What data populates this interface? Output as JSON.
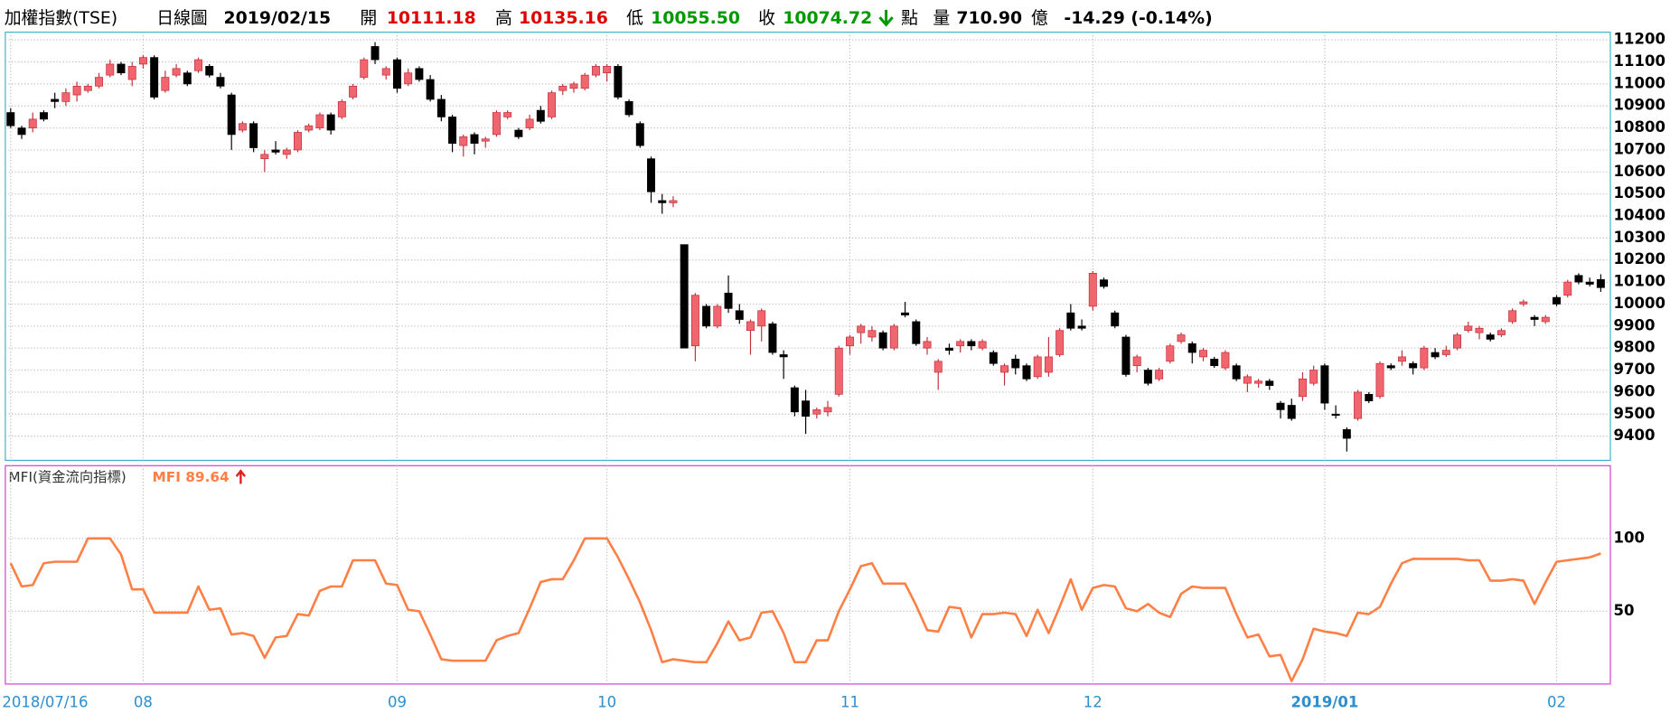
{
  "header": {
    "title": "加權指數(TSE)",
    "period": "日線圖",
    "date": "2019/02/15",
    "open_label": "開",
    "open": "10111.18",
    "high_label": "高",
    "high": "10135.16",
    "low_label": "低",
    "low": "10055.50",
    "close_label": "收",
    "close": "10074.72",
    "unit": "點",
    "volume_label": "量",
    "volume": "710.90",
    "volume_unit": "億",
    "change": "-14.29 (-0.14%)"
  },
  "chart_data": [
    {
      "type": "candlestick",
      "categories": [
        "2018/07/16",
        null,
        null,
        null,
        null,
        null,
        null,
        null,
        null,
        null,
        null,
        null,
        "08",
        null,
        null,
        null,
        null,
        null,
        null,
        null,
        null,
        null,
        null,
        null,
        null,
        null,
        null,
        null,
        null,
        null,
        null,
        null,
        null,
        null,
        null,
        "09",
        null,
        null,
        null,
        null,
        null,
        null,
        null,
        null,
        null,
        null,
        null,
        null,
        null,
        null,
        null,
        null,
        null,
        null,
        "10",
        null,
        null,
        null,
        null,
        null,
        null,
        null,
        null,
        null,
        null,
        null,
        null,
        null,
        null,
        null,
        null,
        null,
        null,
        null,
        null,
        null,
        "11",
        null,
        null,
        null,
        null,
        null,
        null,
        null,
        null,
        null,
        null,
        null,
        null,
        null,
        null,
        null,
        null,
        null,
        null,
        null,
        null,
        null,
        "12",
        null,
        null,
        null,
        null,
        null,
        null,
        null,
        null,
        null,
        null,
        null,
        null,
        null,
        null,
        null,
        null,
        null,
        null,
        null,
        null,
        "2019/01",
        null,
        null,
        null,
        null,
        null,
        null,
        null,
        null,
        null,
        null,
        null,
        null,
        null,
        null,
        null,
        null,
        null,
        null,
        null,
        null,
        "02",
        null,
        null,
        null,
        null
      ],
      "open": [
        10870,
        10800,
        10800,
        10870,
        10930,
        10920,
        10950,
        10970,
        10990,
        11040,
        11090,
        11020,
        11090,
        11120,
        10970,
        11040,
        11050,
        11060,
        11080,
        11030,
        10950,
        10790,
        10820,
        10660,
        10700,
        10680,
        10700,
        10790,
        10800,
        10860,
        10850,
        10940,
        11030,
        11170,
        11040,
        11110,
        11000,
        11070,
        11020,
        10930,
        10850,
        10720,
        10770,
        10740,
        10770,
        10850,
        10790,
        10800,
        10880,
        10850,
        10970,
        10980,
        10980,
        11040,
        11050,
        11080,
        10920,
        10820,
        10660,
        10470,
        10460,
        10270,
        9810,
        9990,
        9900,
        10050,
        9970,
        9880,
        9900,
        9910,
        9770,
        9620,
        9560,
        9500,
        9510,
        9590,
        9810,
        9870,
        9850,
        9870,
        9800,
        9960,
        9920,
        9800,
        9690,
        9800,
        9810,
        9830,
        9800,
        9780,
        9690,
        9750,
        9720,
        9670,
        9690,
        9770,
        9960,
        9900,
        9990,
        10110,
        9960,
        9850,
        9720,
        9700,
        9660,
        9740,
        9830,
        9820,
        9760,
        9750,
        9710,
        9720,
        9640,
        9640,
        9650,
        9550,
        9540,
        9580,
        9640,
        9720,
        9500,
        9430,
        9480,
        9590,
        9580,
        9720,
        9740,
        9730,
        9710,
        9780,
        9770,
        9800,
        9880,
        9870,
        9860,
        9860,
        9920,
        10000,
        9940,
        9920,
        10030,
        10040,
        10130,
        10100,
        10111.18
      ],
      "high": [
        10890,
        10810,
        10870,
        10880,
        10960,
        10980,
        11010,
        11000,
        11050,
        11110,
        11100,
        11100,
        11130,
        11130,
        11060,
        11090,
        11060,
        11120,
        11090,
        11050,
        10960,
        10830,
        10830,
        10700,
        10740,
        10710,
        10790,
        10820,
        10870,
        10870,
        10930,
        11000,
        11120,
        11190,
        11080,
        11120,
        11070,
        11080,
        11040,
        10950,
        10860,
        10770,
        10780,
        10760,
        10880,
        10880,
        10800,
        10860,
        10900,
        10970,
        11000,
        11010,
        11050,
        11090,
        11090,
        11090,
        10930,
        10830,
        10670,
        10500,
        10490,
        10270,
        10050,
        10000,
        10000,
        10130,
        10000,
        9930,
        9980,
        9920,
        9790,
        9630,
        9610,
        9530,
        9560,
        9810,
        9860,
        9910,
        9900,
        9880,
        9910,
        10010,
        9930,
        9850,
        9750,
        9820,
        9840,
        9840,
        9840,
        9790,
        9730,
        9770,
        9730,
        9770,
        9850,
        9890,
        10000,
        9930,
        10150,
        10120,
        9970,
        9860,
        9770,
        9710,
        9710,
        9820,
        9870,
        9830,
        9800,
        9760,
        9790,
        9730,
        9680,
        9660,
        9660,
        9560,
        9570,
        9690,
        9720,
        9730,
        9540,
        9440,
        9610,
        9600,
        9740,
        9730,
        9790,
        9740,
        9810,
        9800,
        9810,
        9870,
        9920,
        9900,
        9870,
        9890,
        9980,
        10020,
        9950,
        9950,
        10040,
        10110,
        10140,
        10120,
        10135.16
      ],
      "low": [
        10800,
        10750,
        10780,
        10830,
        10890,
        10900,
        10920,
        10960,
        10980,
        11030,
        11040,
        10990,
        11070,
        10930,
        10960,
        11030,
        10990,
        11050,
        11030,
        10980,
        10700,
        10780,
        10690,
        10600,
        10680,
        10660,
        10690,
        10780,
        10790,
        10770,
        10840,
        10930,
        11020,
        11090,
        11020,
        10960,
        10990,
        11010,
        10920,
        10830,
        10690,
        10670,
        10680,
        10710,
        10760,
        10840,
        10750,
        10790,
        10820,
        10840,
        10950,
        10960,
        10970,
        11030,
        11010,
        10930,
        10850,
        10710,
        10460,
        10410,
        10440,
        9800,
        9740,
        9890,
        9890,
        9960,
        9910,
        9770,
        9830,
        9770,
        9660,
        9490,
        9410,
        9480,
        9490,
        9580,
        9770,
        9820,
        9830,
        9790,
        9790,
        9940,
        9810,
        9770,
        9610,
        9770,
        9780,
        9790,
        9790,
        9720,
        9630,
        9680,
        9650,
        9660,
        9670,
        9760,
        9880,
        9880,
        9970,
        10070,
        9890,
        9670,
        9690,
        9630,
        9650,
        9730,
        9820,
        9730,
        9740,
        9710,
        9700,
        9650,
        9600,
        9620,
        9610,
        9480,
        9470,
        9560,
        9630,
        9520,
        9480,
        9330,
        9470,
        9550,
        9570,
        9700,
        9720,
        9680,
        9700,
        9750,
        9760,
        9790,
        9870,
        9840,
        9830,
        9850,
        9910,
        9990,
        9900,
        9910,
        9990,
        10030,
        10090,
        10080,
        10055.5
      ],
      "close": [
        10810,
        10770,
        10840,
        10840,
        10920,
        10960,
        10990,
        10990,
        11030,
        11090,
        11050,
        11080,
        11120,
        10940,
        11030,
        11070,
        11000,
        11110,
        11040,
        10990,
        10770,
        10820,
        10710,
        10680,
        10690,
        10700,
        10780,
        10810,
        10860,
        10790,
        10920,
        10990,
        11110,
        11110,
        11070,
        10980,
        11050,
        11020,
        10930,
        10850,
        10730,
        10760,
        10730,
        10750,
        10870,
        10870,
        10760,
        10840,
        10830,
        10960,
        10990,
        11000,
        11040,
        11080,
        11080,
        10940,
        10860,
        10720,
        10510,
        10460,
        10470,
        9800,
        10040,
        9900,
        9990,
        9980,
        9930,
        9920,
        9970,
        9780,
        9760,
        9510,
        9490,
        9520,
        9530,
        9800,
        9850,
        9900,
        9880,
        9800,
        9900,
        9950,
        9820,
        9830,
        9740,
        9790,
        9830,
        9810,
        9830,
        9730,
        9720,
        9710,
        9660,
        9760,
        9760,
        9880,
        9890,
        9890,
        10140,
        10080,
        9900,
        9680,
        9760,
        9640,
        9700,
        9810,
        9860,
        9780,
        9790,
        9720,
        9780,
        9660,
        9670,
        9650,
        9630,
        9520,
        9480,
        9660,
        9700,
        9550,
        9500,
        9390,
        9600,
        9560,
        9730,
        9710,
        9760,
        9710,
        9800,
        9760,
        9790,
        9860,
        9900,
        9890,
        9840,
        9880,
        9970,
        10010,
        9930,
        9940,
        10000,
        10100,
        10100,
        10090,
        10074.72
      ],
      "up_color": "#f0656e",
      "down_color": "#000000",
      "ylim": [
        9290,
        11235
      ],
      "yticks": [
        9400,
        9500,
        9600,
        9700,
        9800,
        9900,
        10000,
        10100,
        10200,
        10300,
        10400,
        10500,
        10600,
        10700,
        10800,
        10900,
        11000,
        11100,
        11200
      ],
      "grid": true
    },
    {
      "type": "line",
      "title": "MFI(資金流向指標)",
      "series": [
        {
          "name": "MFI 89.64",
          "color": "#ff7f45",
          "values": [
            83,
            67,
            68,
            83,
            84,
            84,
            84,
            100,
            100,
            100,
            89,
            65,
            65,
            49,
            49,
            49,
            49,
            67,
            51,
            52,
            34,
            35,
            33,
            18,
            32,
            33,
            48,
            47,
            64,
            67,
            67,
            85,
            85,
            85,
            69,
            68,
            51,
            50,
            34,
            17,
            16,
            16,
            16,
            16,
            30,
            33,
            35,
            52,
            70,
            72,
            72,
            85,
            100,
            100,
            100,
            87,
            72,
            56,
            37,
            15,
            17,
            16,
            15,
            15,
            28,
            43,
            30,
            32,
            49,
            50,
            35,
            15,
            15,
            30,
            30,
            50,
            65,
            81,
            83,
            69,
            69,
            69,
            54,
            37,
            36,
            53,
            52,
            32,
            48,
            48,
            49,
            48,
            33,
            51,
            35,
            53,
            72,
            51,
            66,
            68,
            67,
            52,
            50,
            55,
            49,
            46,
            62,
            67,
            66,
            66,
            66,
            48,
            32,
            34,
            19,
            20,
            2,
            17,
            38,
            36,
            35,
            33,
            49,
            48,
            53,
            69,
            83,
            86,
            86,
            86,
            86,
            86,
            85,
            85,
            71,
            71,
            72,
            71,
            55,
            70,
            84,
            85,
            86,
            87,
            89.64
          ]
        }
      ],
      "ylim": [
        0,
        150
      ],
      "yticks": [
        50,
        100
      ],
      "grid": true
    }
  ]
}
